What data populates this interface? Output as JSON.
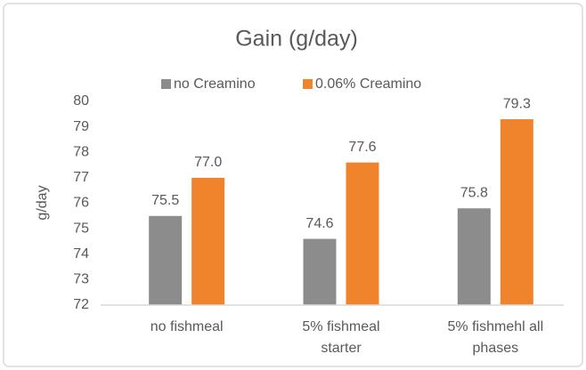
{
  "chart_data": {
    "type": "bar",
    "title": "Gain (g/day)",
    "y_label": "g/day",
    "categories": [
      "no fishmeal",
      "5% fishmeal starter",
      "5% fishmehl all phases"
    ],
    "series": [
      {
        "name": "no Creamino",
        "color": "#8c8c8c",
        "values": [
          75.5,
          74.6,
          75.8
        ],
        "value_labels": [
          "75.5",
          "74.6",
          "75.8"
        ]
      },
      {
        "name": "0.06% Creamino",
        "color": "#f0842c",
        "values": [
          77.0,
          77.6,
          79.3
        ],
        "value_labels": [
          "77.0",
          "77.6",
          "79.3"
        ]
      }
    ],
    "ylim": [
      72,
      80
    ],
    "yticks": [
      72,
      73,
      74,
      75,
      76,
      77,
      78,
      79,
      80
    ],
    "grid": false,
    "legend": "top"
  }
}
